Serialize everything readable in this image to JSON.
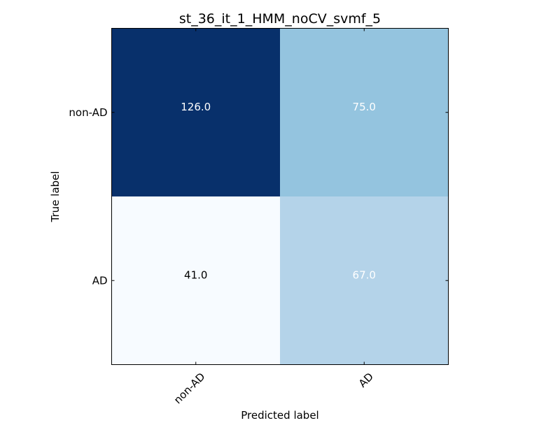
{
  "chart_data": {
    "type": "heatmap",
    "title": "st_36_it_1_HMM_noCV_svmf_5",
    "xlabel": "Predicted label",
    "ylabel": "True label",
    "x_categories": [
      "non-AD",
      "AD"
    ],
    "y_categories": [
      "non-AD",
      "AD"
    ],
    "matrix": [
      [
        126.0,
        75.0
      ],
      [
        41.0,
        67.0
      ]
    ],
    "cell_labels": [
      [
        "126.0",
        "75.0"
      ],
      [
        "41.0",
        "67.0"
      ]
    ],
    "colormap": "Blues",
    "colors": {
      "light_text": "#ffffff",
      "dark_text": "#000000"
    }
  }
}
